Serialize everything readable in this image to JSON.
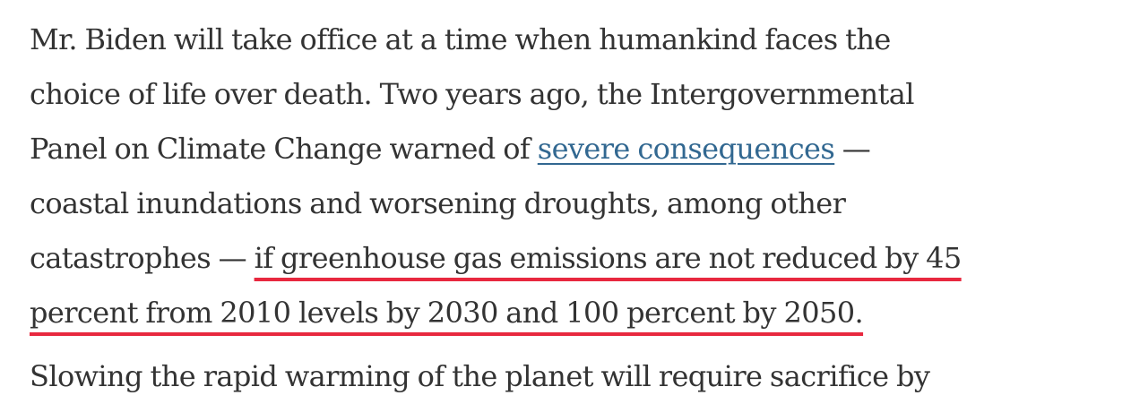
{
  "article": {
    "paragraph1": {
      "line1": "Mr. Biden will take office at a time when humankind faces the",
      "line2": "choice of life over death. Two years ago, the Intergovernmental",
      "line3_before_link": "Panel on Climate Change warned of ",
      "link_text": "severe consequences",
      "line3_after_link": " —",
      "line4": "coastal inundations and worsening droughts, among other",
      "line5_before_highlight": "catastrophes — ",
      "highlight_part1": "if greenhouse gas emissions are not reduced by 45",
      "highlight_part2": "percent from 2010 levels by 2030 and 100 percent by 2050."
    },
    "paragraph2_partial": "Slowing the rapid warming of the planet will require sacrifice by"
  },
  "colors": {
    "text": "#333333",
    "link": "#326891",
    "highlight_underline": "#e8283f",
    "background": "#ffffff"
  }
}
